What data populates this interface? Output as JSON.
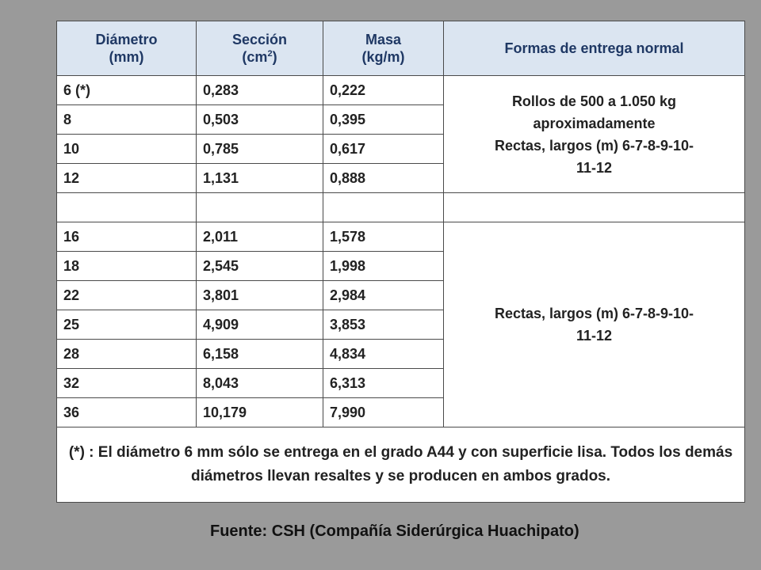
{
  "header": {
    "col1_line1": "Diámetro",
    "col1_line2": "(mm)",
    "col2_line1": "Sección",
    "col2_unit": "(cm",
    "col2_sup": "2",
    "col2_close": ")",
    "col3_line1": "Masa",
    "col3_line2": "(kg/m)",
    "col4": "Formas de entrega normal"
  },
  "rows": [
    {
      "d": "6 (*)",
      "s": "0,283",
      "m": "0,222"
    },
    {
      "d": "8",
      "s": "0,503",
      "m": "0,395"
    },
    {
      "d": "10",
      "s": "0,785",
      "m": "0,617"
    },
    {
      "d": "12",
      "s": "1,131",
      "m": "0,888"
    },
    {
      "d": "",
      "s": "",
      "m": ""
    },
    {
      "d": "16",
      "s": "2,011",
      "m": "1,578"
    },
    {
      "d": "18",
      "s": "2,545",
      "m": "1,998"
    },
    {
      "d": "22",
      "s": "3,801",
      "m": "2,984"
    },
    {
      "d": "25",
      "s": "4,909",
      "m": "3,853"
    },
    {
      "d": "28",
      "s": "6,158",
      "m": "4,834"
    },
    {
      "d": "32",
      "s": "8,043",
      "m": "6,313"
    },
    {
      "d": "36",
      "s": "10,179",
      "m": "7,990"
    }
  ],
  "delivery_1_line1": "Rollos de 500 a 1.050 kg",
  "delivery_1_line2": "aproximadamente",
  "delivery_1_line3": "Rectas, largos (m) 6-7-8-9-10-",
  "delivery_1_line4": "11-12",
  "delivery_2_line1": "Rectas, largos (m) 6-7-8-9-10-",
  "delivery_2_line2": "11-12",
  "note": "(*) : El diámetro 6 mm sólo se entrega en el grado A44 y con superficie lisa. Todos los demás diámetros llevan resaltes y se producen en ambos grados.",
  "source": "Fuente: CSH (Compañía Siderúrgica Huachipato)"
}
